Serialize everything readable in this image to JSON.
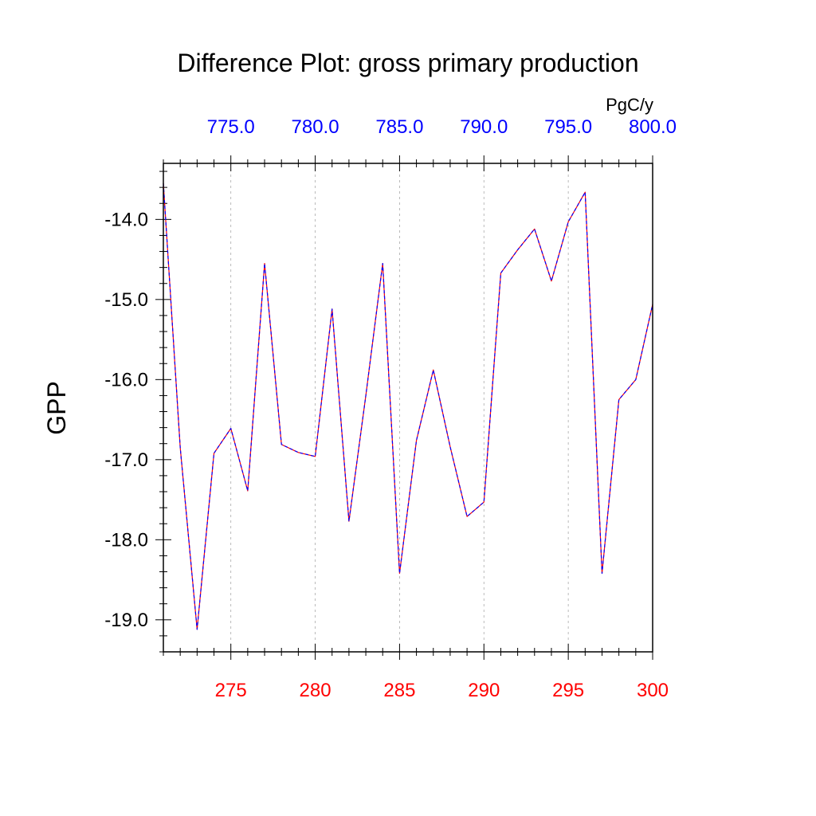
{
  "chart_data": {
    "type": "line",
    "title": "Difference Plot: gross primary production",
    "ylabel": "GPP",
    "units": "PgC/y",
    "colors": {
      "bottom_axis": "#ff0000",
      "top_axis": "#0000ff",
      "line_dash_a": "#ff0000",
      "line_dash_b": "#0000ff",
      "axis": "#000000",
      "grid": "#aaaaaa"
    },
    "grid": {
      "vertical": true,
      "horizontal": false,
      "style": "dashed"
    },
    "x_bottom": {
      "range": [
        271,
        300
      ],
      "ticks": [
        275,
        280,
        285,
        290,
        295,
        300
      ],
      "tick_labels": [
        "275",
        "280",
        "285",
        "290",
        "295",
        "300"
      ]
    },
    "x_top": {
      "range": [
        771,
        800
      ],
      "ticks": [
        775,
        780,
        785,
        790,
        795,
        800
      ],
      "tick_labels": [
        "775.0",
        "780.0",
        "785.0",
        "790.0",
        "795.0",
        "800.0"
      ]
    },
    "y": {
      "range": [
        -19.4,
        -13.3
      ],
      "ticks": [
        -19,
        -18,
        -17,
        -16,
        -15,
        -14
      ],
      "tick_labels": [
        "-19.0",
        "-18.0",
        "-17.0",
        "-16.0",
        "-15.0",
        "-14.0"
      ]
    },
    "x": [
      271,
      272,
      273,
      274,
      275,
      276,
      277,
      278,
      279,
      280,
      281,
      282,
      283,
      284,
      285,
      286,
      287,
      288,
      289,
      290,
      291,
      292,
      293,
      294,
      295,
      296,
      297,
      298,
      299,
      300
    ],
    "series": [
      {
        "values": [
          -13.55,
          -16.85,
          -19.12,
          -16.92,
          -16.61,
          -17.39,
          -14.55,
          -16.81,
          -16.91,
          -16.96,
          -15.12,
          -17.77,
          -16.2,
          -14.55,
          -18.42,
          -16.76,
          -15.88,
          -16.84,
          -17.71,
          -17.53,
          -14.67,
          -14.38,
          -14.12,
          -14.77,
          -14.03,
          -13.66,
          -18.42,
          -16.25,
          -16.0,
          -15.06
        ]
      }
    ]
  }
}
